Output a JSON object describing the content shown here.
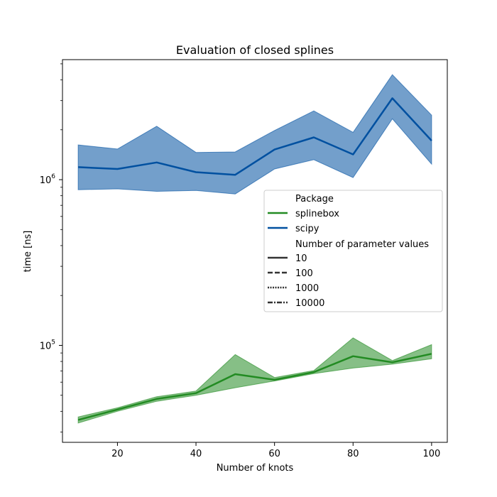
{
  "chart_data": {
    "type": "line",
    "title": "Evaluation of closed splines",
    "xlabel": "Number of knots",
    "ylabel": "time [ns]",
    "yscale": "log",
    "xlim": [
      6,
      104
    ],
    "ylim": [
      26000,
      5300000
    ],
    "grid": false,
    "legend_position": "center-right",
    "x_ticks": [
      {
        "value": 20,
        "label": "20"
      },
      {
        "value": 40,
        "label": "40"
      },
      {
        "value": 60,
        "label": "60"
      },
      {
        "value": 80,
        "label": "80"
      },
      {
        "value": 100,
        "label": "100"
      }
    ],
    "y_ticks": [
      {
        "value": 100000,
        "base": "10",
        "exp": "5"
      },
      {
        "value": 1000000,
        "base": "10",
        "exp": "6"
      }
    ],
    "x": [
      10,
      20,
      30,
      40,
      50,
      60,
      70,
      80,
      90,
      100
    ],
    "series": [
      {
        "name": "splinebox",
        "color": "#228b22",
        "values": [
          35500,
          41000,
          47500,
          51500,
          67000,
          62000,
          69000,
          86000,
          79000,
          89000
        ],
        "lower": [
          34000,
          40000,
          46000,
          50000,
          55500,
          61000,
          67500,
          73000,
          77000,
          83000
        ],
        "upper": [
          37000,
          42000,
          49000,
          53000,
          88000,
          64000,
          70500,
          111000,
          81000,
          101000
        ]
      },
      {
        "name": "scipy",
        "color": "#0050a0",
        "values": [
          1190000,
          1160000,
          1270000,
          1110000,
          1070000,
          1520000,
          1800000,
          1420000,
          3100000,
          1720000
        ],
        "lower": [
          870000,
          880000,
          850000,
          860000,
          820000,
          1160000,
          1320000,
          1030000,
          2330000,
          1240000
        ],
        "upper": [
          1620000,
          1530000,
          2100000,
          1460000,
          1470000,
          1980000,
          2600000,
          1930000,
          4300000,
          2450000
        ]
      }
    ],
    "legend": {
      "package_title": "Package",
      "package_entries": [
        {
          "label": "splinebox",
          "color": "#228b22"
        },
        {
          "label": "scipy",
          "color": "#0050a0"
        }
      ],
      "param_title": "Number of parameter values",
      "param_entries": [
        {
          "label": "10",
          "dash": "solid"
        },
        {
          "label": "100",
          "dash": "dashed"
        },
        {
          "label": "1000",
          "dash": "dotted"
        },
        {
          "label": "10000",
          "dash": "dashdot"
        }
      ]
    }
  }
}
